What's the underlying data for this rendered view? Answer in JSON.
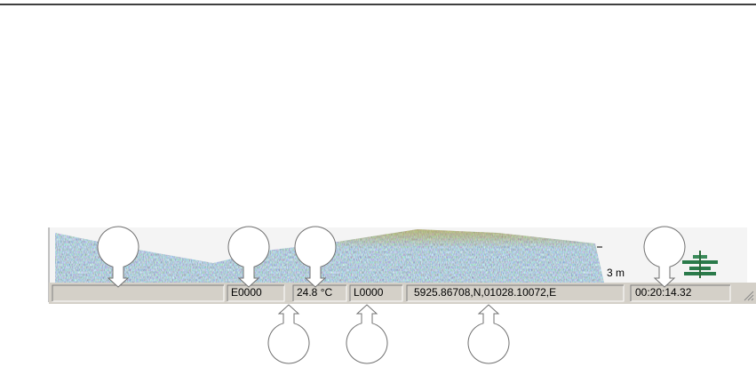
{
  "status_bar": {
    "echo": "E0000",
    "temperature": "24.8 °C",
    "log": "L0000",
    "position": "5925.86708,N,01028.10072,E",
    "time": "00:20:14.32"
  },
  "sonar": {
    "depth_scale": "3 m"
  }
}
